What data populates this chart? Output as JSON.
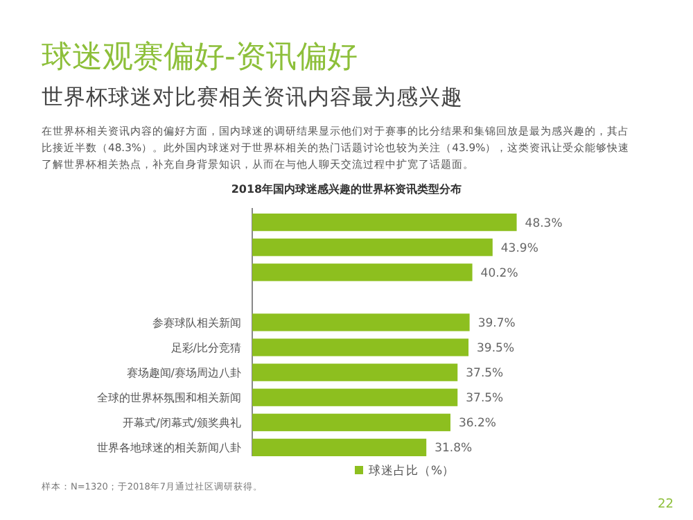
{
  "chart_data": {
    "type": "bar",
    "orientation": "horizontal",
    "title": "球迷观赛偏好-资讯偏好",
    "subtitle": "世界杯球迷对比赛相关资讯内容最为感兴趣",
    "annotations": [
      "在世界杯相关资讯内容的偏好方面，国内球迷的调研结果显示他们对于赛事的比分结果和集锦回放是最为感兴趣的，其占",
      "比接近半数（48.3%）。此外国内球迷对于世界杯相关的热门话题讨论也较为关注（43.9%），这类资讯让受众能够快速",
      "了解世界杯相关热点，补充自身背景知识，从而在与他人聊天交流过程中扩宽了话题面。",
      "2018年国内球迷感兴趣的世界杯资讯类型分布",
      "样本：N=1320；于2018年7月通过社区调研获得。",
      "22"
    ],
    "categories": [
      null,
      null,
      null,
      null,
      "参赛球队相关新闻",
      "足彩/比分竞猜",
      "赛场趣闻/赛场周边八卦",
      "全球的世界杯氛围和相关新闻",
      "开幕式/闭幕式/颁奖典礼",
      "世界各地球迷的相关新闻八卦"
    ],
    "series": [
      {
        "name": "球迷占比（%）",
        "color": "#8dbf1f",
        "values": [
          48.3,
          43.9,
          40.2,
          null,
          39.7,
          39.5,
          37.5,
          37.5,
          36.2,
          31.8
        ],
        "value_labels": [
          "48.3%",
          "43.9%",
          "40.2%",
          null,
          "39.7%",
          "39.5%",
          "37.5%",
          "37.5%",
          "36.2%",
          "31.8%"
        ]
      }
    ],
    "legend": "bottom"
  }
}
